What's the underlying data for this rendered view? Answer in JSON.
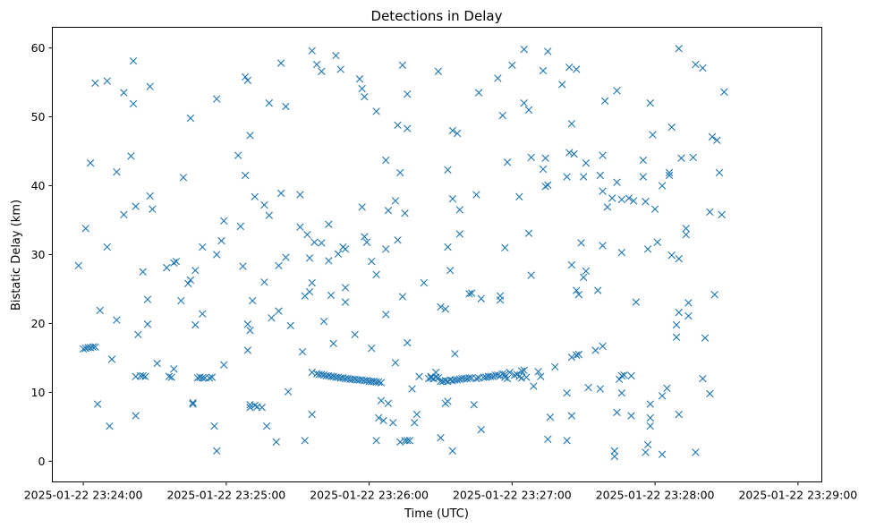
{
  "chart_data": {
    "type": "scatter",
    "title": "Detections in Delay",
    "xlabel": "Time (UTC)",
    "ylabel": "Bistatic Delay (km)",
    "marker": "x",
    "color": "#1f77b4",
    "grid": false,
    "legend": "none",
    "x_unit": "seconds after 2025-01-22 23:24:00 UTC",
    "xlim": [
      -13,
      310
    ],
    "ylim": [
      -3,
      63
    ],
    "x_ticks": [
      0,
      60,
      120,
      180,
      240,
      300
    ],
    "x_tick_labels": [
      "2025-01-22 23:24:00",
      "2025-01-22 23:25:00",
      "2025-01-22 23:26:00",
      "2025-01-22 23:27:00",
      "2025-01-22 23:28:00",
      "2025-01-22 23:29:00"
    ],
    "y_ticks": [
      0,
      10,
      20,
      30,
      40,
      50,
      60
    ],
    "y_tick_labels": [
      "0",
      "10",
      "20",
      "30",
      "40",
      "50",
      "60"
    ],
    "points": [
      [
        -2,
        28.4
      ],
      [
        0,
        16.3
      ],
      [
        1,
        16.4
      ],
      [
        1,
        33.8
      ],
      [
        2,
        16.5
      ],
      [
        3,
        43.3
      ],
      [
        3,
        16.5
      ],
      [
        4,
        16.6
      ],
      [
        5,
        16.6
      ],
      [
        5,
        54.9
      ],
      [
        6,
        8.3
      ],
      [
        7,
        21.9
      ],
      [
        10,
        55.2
      ],
      [
        10,
        31.1
      ],
      [
        11,
        5.1
      ],
      [
        12,
        14.8
      ],
      [
        14,
        42.0
      ],
      [
        14,
        20.5
      ],
      [
        17,
        53.5
      ],
      [
        17,
        35.8
      ],
      [
        20,
        44.3
      ],
      [
        21,
        58.1
      ],
      [
        21,
        51.9
      ],
      [
        22,
        12.3
      ],
      [
        22,
        6.6
      ],
      [
        22,
        37.0
      ],
      [
        23,
        18.4
      ],
      [
        24,
        12.4
      ],
      [
        25,
        27.5
      ],
      [
        25,
        12.4
      ],
      [
        26,
        12.3
      ],
      [
        27,
        23.5
      ],
      [
        27,
        19.9
      ],
      [
        28,
        54.4
      ],
      [
        28,
        38.5
      ],
      [
        29,
        36.6
      ],
      [
        31,
        14.2
      ],
      [
        35,
        28.1
      ],
      [
        36,
        12.3
      ],
      [
        37,
        12.2
      ],
      [
        38,
        28.8
      ],
      [
        38,
        13.4
      ],
      [
        39,
        29.0
      ],
      [
        41,
        23.3
      ],
      [
        42,
        41.2
      ],
      [
        44,
        25.8
      ],
      [
        45,
        49.8
      ],
      [
        45,
        26.3
      ],
      [
        46,
        8.3
      ],
      [
        46,
        8.5
      ],
      [
        47,
        27.7
      ],
      [
        47,
        19.8
      ],
      [
        48,
        12.1
      ],
      [
        49,
        12.2
      ],
      [
        50,
        31.1
      ],
      [
        50,
        21.4
      ],
      [
        50,
        12.1
      ],
      [
        51,
        12.1
      ],
      [
        53,
        12.1
      ],
      [
        54,
        12.2
      ],
      [
        55,
        5.1
      ],
      [
        56,
        52.6
      ],
      [
        56,
        1.5
      ],
      [
        56,
        30.0
      ],
      [
        58,
        32.0
      ],
      [
        59,
        14.0
      ],
      [
        59,
        34.9
      ],
      [
        65,
        44.4
      ],
      [
        66,
        34.1
      ],
      [
        67,
        28.3
      ],
      [
        68,
        55.8
      ],
      [
        68,
        41.5
      ],
      [
        69,
        55.3
      ],
      [
        69,
        16.1
      ],
      [
        69,
        19.9
      ],
      [
        70,
        47.3
      ],
      [
        70,
        19.0
      ],
      [
        70,
        8.2
      ],
      [
        70,
        7.8
      ],
      [
        71,
        23.3
      ],
      [
        72,
        38.4
      ],
      [
        72,
        8.1
      ],
      [
        73,
        7.9
      ],
      [
        75,
        7.8
      ],
      [
        76,
        26.0
      ],
      [
        76,
        37.2
      ],
      [
        77,
        5.1
      ],
      [
        78,
        52.0
      ],
      [
        78,
        35.7
      ],
      [
        79,
        20.8
      ],
      [
        81,
        2.8
      ],
      [
        82,
        28.4
      ],
      [
        82,
        21.8
      ],
      [
        83,
        38.9
      ],
      [
        83,
        57.8
      ],
      [
        85,
        51.5
      ],
      [
        85,
        29.6
      ],
      [
        86,
        10.1
      ],
      [
        87,
        19.7
      ],
      [
        91,
        38.7
      ],
      [
        91,
        34.0
      ],
      [
        92,
        15.9
      ],
      [
        93,
        3.0
      ],
      [
        93,
        24.0
      ],
      [
        94,
        32.9
      ],
      [
        95,
        29.5
      ],
      [
        95,
        24.6
      ],
      [
        96,
        59.6
      ],
      [
        96,
        12.9
      ],
      [
        96,
        25.9
      ],
      [
        96,
        6.8
      ],
      [
        97,
        31.8
      ],
      [
        98,
        57.6
      ],
      [
        98,
        12.7
      ],
      [
        99,
        12.6
      ],
      [
        100,
        56.6
      ],
      [
        100,
        31.7
      ],
      [
        100,
        12.6
      ],
      [
        101,
        20.3
      ],
      [
        101,
        12.5
      ],
      [
        102,
        12.4
      ],
      [
        103,
        12.4
      ],
      [
        103,
        29.1
      ],
      [
        103,
        34.4
      ],
      [
        104,
        12.3
      ],
      [
        104,
        24.1
      ],
      [
        105,
        17.1
      ],
      [
        105,
        12.3
      ],
      [
        106,
        58.9
      ],
      [
        106,
        12.2
      ],
      [
        107,
        12.2
      ],
      [
        107,
        30.1
      ],
      [
        108,
        56.9
      ],
      [
        108,
        12.1
      ],
      [
        109,
        12.1
      ],
      [
        109,
        31.1
      ],
      [
        110,
        12.0
      ],
      [
        110,
        30.8
      ],
      [
        110,
        25.2
      ],
      [
        110,
        23.1
      ],
      [
        111,
        12.0
      ],
      [
        112,
        11.9
      ],
      [
        113,
        11.9
      ],
      [
        114,
        18.4
      ],
      [
        114,
        11.9
      ],
      [
        115,
        11.8
      ],
      [
        116,
        55.5
      ],
      [
        116,
        11.8
      ],
      [
        117,
        36.9
      ],
      [
        117,
        11.8
      ],
      [
        117,
        54.1
      ],
      [
        118,
        11.7
      ],
      [
        118,
        32.6
      ],
      [
        118,
        52.9
      ],
      [
        119,
        11.7
      ],
      [
        119,
        31.8
      ],
      [
        120,
        11.6
      ],
      [
        121,
        11.6
      ],
      [
        121,
        29.0
      ],
      [
        121,
        16.4
      ],
      [
        122,
        11.6
      ],
      [
        123,
        11.5
      ],
      [
        123,
        27.1
      ],
      [
        123,
        3.0
      ],
      [
        123,
        50.8
      ],
      [
        124,
        11.5
      ],
      [
        124,
        6.3
      ],
      [
        125,
        11.4
      ],
      [
        125,
        8.8
      ],
      [
        126,
        5.9
      ],
      [
        127,
        43.7
      ],
      [
        127,
        30.8
      ],
      [
        127,
        21.3
      ],
      [
        128,
        36.4
      ],
      [
        128,
        8.4
      ],
      [
        130,
        5.6
      ],
      [
        131,
        37.8
      ],
      [
        131,
        14.3
      ],
      [
        132,
        32.1
      ],
      [
        132,
        48.8
      ],
      [
        133,
        41.9
      ],
      [
        133,
        2.8
      ],
      [
        134,
        57.5
      ],
      [
        134,
        23.9
      ],
      [
        135,
        36.0
      ],
      [
        135,
        3.0
      ],
      [
        136,
        53.3
      ],
      [
        136,
        17.2
      ],
      [
        136,
        48.3
      ],
      [
        136,
        3.0
      ],
      [
        137,
        3.0
      ],
      [
        138,
        10.5
      ],
      [
        139,
        5.6
      ],
      [
        140,
        6.8
      ],
      [
        141,
        12.3
      ],
      [
        143,
        25.9
      ],
      [
        145,
        12.0
      ],
      [
        146,
        12.1
      ],
      [
        146,
        12.3
      ],
      [
        147,
        12.0
      ],
      [
        148,
        12.9
      ],
      [
        148,
        12.2
      ],
      [
        149,
        12.1
      ],
      [
        149,
        56.6
      ],
      [
        150,
        22.4
      ],
      [
        150,
        11.6
      ],
      [
        150,
        3.4
      ],
      [
        151,
        11.6
      ],
      [
        152,
        11.7
      ],
      [
        152,
        8.4
      ],
      [
        152,
        22.1
      ],
      [
        153,
        11.6
      ],
      [
        153,
        8.7
      ],
      [
        153,
        42.3
      ],
      [
        153,
        31.1
      ],
      [
        154,
        11.8
      ],
      [
        154,
        27.7
      ],
      [
        155,
        11.7
      ],
      [
        155,
        1.5
      ],
      [
        155,
        48.0
      ],
      [
        155,
        38.1
      ],
      [
        156,
        11.8
      ],
      [
        156,
        15.6
      ],
      [
        157,
        11.8
      ],
      [
        157,
        47.6
      ],
      [
        158,
        11.9
      ],
      [
        158,
        33.0
      ],
      [
        158,
        36.5
      ],
      [
        159,
        12.0
      ],
      [
        160,
        12.0
      ],
      [
        161,
        12.0
      ],
      [
        162,
        12.1
      ],
      [
        162,
        24.3
      ],
      [
        163,
        12.1
      ],
      [
        163,
        24.4
      ],
      [
        164,
        8.2
      ],
      [
        165,
        38.7
      ],
      [
        165,
        12.0
      ],
      [
        166,
        53.5
      ],
      [
        166,
        12.1
      ],
      [
        167,
        23.6
      ],
      [
        167,
        4.6
      ],
      [
        168,
        12.2
      ],
      [
        169,
        12.2
      ],
      [
        170,
        12.3
      ],
      [
        171,
        12.3
      ],
      [
        172,
        12.3
      ],
      [
        173,
        12.5
      ],
      [
        174,
        12.5
      ],
      [
        174,
        55.6
      ],
      [
        175,
        12.4
      ],
      [
        175,
        24.0
      ],
      [
        175,
        23.4
      ],
      [
        176,
        12.7
      ],
      [
        176,
        50.2
      ],
      [
        177,
        12.6
      ],
      [
        177,
        12.2
      ],
      [
        177,
        31.0
      ],
      [
        178,
        43.4
      ],
      [
        178,
        12.0
      ],
      [
        179,
        12.9
      ],
      [
        180,
        57.5
      ],
      [
        181,
        12.5
      ],
      [
        182,
        12.6
      ],
      [
        183,
        38.4
      ],
      [
        183,
        12.3
      ],
      [
        184,
        13.1
      ],
      [
        184,
        12.1
      ],
      [
        185,
        13.2
      ],
      [
        185,
        59.8
      ],
      [
        185,
        52.0
      ],
      [
        186,
        12.2
      ],
      [
        187,
        51.0
      ],
      [
        187,
        33.1
      ],
      [
        188,
        27.0
      ],
      [
        188,
        44.1
      ],
      [
        189,
        10.9
      ],
      [
        191,
        13.0
      ],
      [
        192,
        12.3
      ],
      [
        193,
        56.7
      ],
      [
        193,
        42.4
      ],
      [
        194,
        44.0
      ],
      [
        194,
        39.9
      ],
      [
        195,
        40.1
      ],
      [
        195,
        59.5
      ],
      [
        195,
        3.2
      ],
      [
        196,
        6.4
      ],
      [
        198,
        13.7
      ],
      [
        201,
        54.7
      ],
      [
        203,
        41.3
      ],
      [
        203,
        3.0
      ],
      [
        203,
        9.9
      ],
      [
        204,
        57.2
      ],
      [
        204,
        44.8
      ],
      [
        205,
        28.5
      ],
      [
        205,
        15.1
      ],
      [
        205,
        6.6
      ],
      [
        205,
        49.0
      ],
      [
        206,
        44.6
      ],
      [
        207,
        56.9
      ],
      [
        207,
        24.8
      ],
      [
        207,
        15.4
      ],
      [
        208,
        15.5
      ],
      [
        208,
        24.2
      ],
      [
        209,
        31.7
      ],
      [
        210,
        41.3
      ],
      [
        210,
        26.7
      ],
      [
        211,
        43.3
      ],
      [
        211,
        27.6
      ],
      [
        212,
        10.7
      ],
      [
        215,
        16.1
      ],
      [
        216,
        24.8
      ],
      [
        217,
        41.5
      ],
      [
        217,
        10.5
      ],
      [
        218,
        16.7
      ],
      [
        218,
        31.3
      ],
      [
        218,
        44.4
      ],
      [
        218,
        39.2
      ],
      [
        219,
        52.3
      ],
      [
        220,
        36.9
      ],
      [
        222,
        38.2
      ],
      [
        223,
        1.5
      ],
      [
        223,
        0.7
      ],
      [
        224,
        53.8
      ],
      [
        224,
        40.5
      ],
      [
        224,
        7.1
      ],
      [
        225,
        11.9
      ],
      [
        226,
        12.4
      ],
      [
        226,
        38.0
      ],
      [
        226,
        30.3
      ],
      [
        226,
        9.9
      ],
      [
        227,
        12.5
      ],
      [
        229,
        38.2
      ],
      [
        230,
        12.4
      ],
      [
        230,
        6.6
      ],
      [
        231,
        37.8
      ],
      [
        232,
        23.1
      ],
      [
        235,
        43.7
      ],
      [
        235,
        41.3
      ],
      [
        236,
        37.7
      ],
      [
        236,
        1.3
      ],
      [
        237,
        2.4
      ],
      [
        237,
        30.8
      ],
      [
        238,
        8.3
      ],
      [
        238,
        6.3
      ],
      [
        238,
        5.1
      ],
      [
        238,
        52.0
      ],
      [
        239,
        47.4
      ],
      [
        240,
        36.6
      ],
      [
        241,
        31.8
      ],
      [
        243,
        40.0
      ],
      [
        243,
        9.5
      ],
      [
        243,
        1.0
      ],
      [
        245,
        10.6
      ],
      [
        246,
        41.5
      ],
      [
        246,
        41.9
      ],
      [
        247,
        48.5
      ],
      [
        247,
        29.9
      ],
      [
        249,
        18.0
      ],
      [
        249,
        19.8
      ],
      [
        250,
        29.4
      ],
      [
        250,
        21.6
      ],
      [
        250,
        6.8
      ],
      [
        250,
        59.9
      ],
      [
        251,
        44.0
      ],
      [
        253,
        33.8
      ],
      [
        253,
        32.9
      ],
      [
        254,
        21.1
      ],
      [
        254,
        23.0
      ],
      [
        256,
        44.1
      ],
      [
        257,
        1.3
      ],
      [
        257,
        57.6
      ],
      [
        260,
        57.1
      ],
      [
        260,
        12.0
      ],
      [
        261,
        17.9
      ],
      [
        263,
        36.2
      ],
      [
        263,
        9.8
      ],
      [
        264,
        47.1
      ],
      [
        265,
        24.2
      ],
      [
        266,
        46.6
      ],
      [
        267,
        41.9
      ],
      [
        268,
        35.8
      ],
      [
        269,
        53.6
      ]
    ]
  }
}
